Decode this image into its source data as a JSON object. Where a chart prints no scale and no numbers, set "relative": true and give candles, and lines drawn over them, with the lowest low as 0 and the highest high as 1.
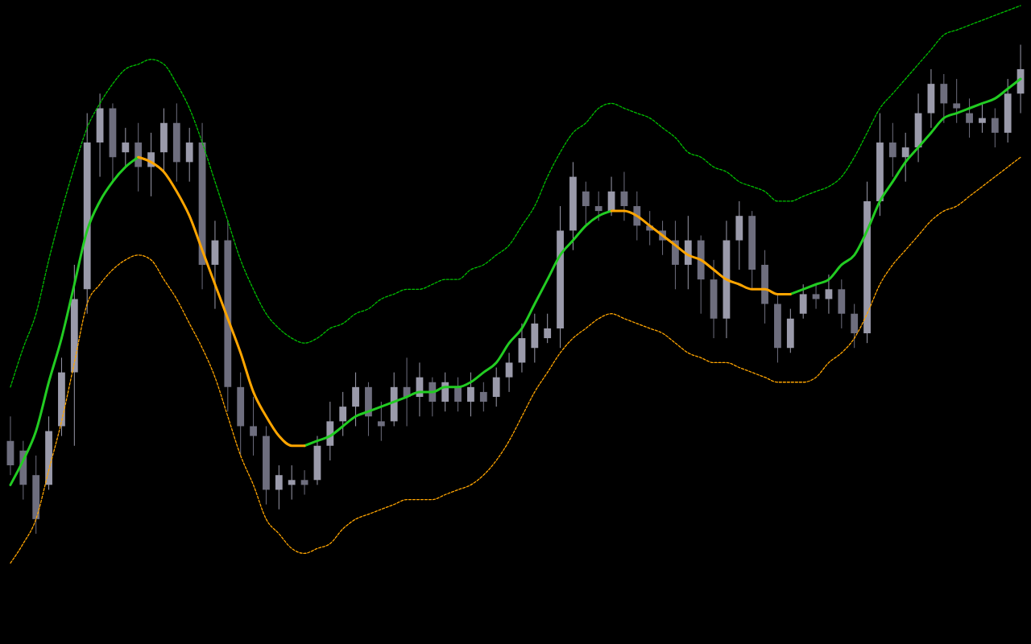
{
  "chart_data": {
    "type": "candlestick",
    "relative": true,
    "tick_labels": false,
    "colors": [
      "#6e6e7e",
      "#6e6e7e",
      "#6e6e7e",
      "#9a9aaa",
      "#9a9aaa",
      "#9a9aaa",
      "#9a9aaa",
      "#9a9aaa",
      "#6e6e7e",
      "#9a9aaa",
      "#6e6e7e",
      "#9a9aaa",
      "#9a9aaa",
      "#6e6e7e",
      "#9a9aaa",
      "#6e6e7e",
      "#9a9aaa",
      "#6e6e7e",
      "#6e6e7e",
      "#6e6e7e",
      "#6e6e7e",
      "#9a9aaa",
      "#9a9aaa",
      "#6e6e7e",
      "#9a9aaa",
      "#9a9aaa",
      "#9a9aaa",
      "#9a9aaa",
      "#6e6e7e",
      "#6e6e7e",
      "#9a9aaa",
      "#6e6e7e",
      "#9a9aaa",
      "#6e6e7e",
      "#9a9aaa",
      "#6e6e7e",
      "#9a9aaa",
      "#6e6e7e",
      "#9a9aaa",
      "#9a9aaa",
      "#9a9aaa",
      "#9a9aaa",
      "#9a9aaa",
      "#9a9aaa",
      "#9a9aaa",
      "#6e6e7e",
      "#6e6e7e",
      "#9a9aaa",
      "#6e6e7e",
      "#6e6e7e",
      "#6e6e7e",
      "#6e6e7e",
      "#6e6e7e",
      "#9a9aaa",
      "#6e6e7e",
      "#6e6e7e",
      "#9a9aaa",
      "#9a9aaa",
      "#6e6e7e",
      "#6e6e7e",
      "#6e6e7e",
      "#9a9aaa",
      "#9a9aaa",
      "#6e6e7e",
      "#9a9aaa",
      "#6e6e7e",
      "#6e6e7e",
      "#9a9aaa",
      "#9a9aaa",
      "#6e6e7e",
      "#9a9aaa",
      "#9a9aaa",
      "#9a9aaa",
      "#6e6e7e",
      "#6e6e7e",
      "#6e6e7e",
      "#9a9aaa",
      "#6e6e7e",
      "#9a9aaa",
      "#9a9aaa"
    ],
    "categories": [
      null,
      null,
      null,
      null,
      null,
      null,
      null,
      null,
      null,
      null,
      null,
      null,
      null,
      null,
      null,
      null,
      null,
      null,
      null,
      null,
      null,
      null,
      null,
      null,
      null,
      null,
      null,
      null,
      null,
      null,
      null,
      null,
      null,
      null,
      null,
      null,
      null,
      null,
      null,
      null,
      null,
      null,
      null,
      null,
      null,
      null,
      null,
      null,
      null,
      null,
      null,
      null,
      null,
      null,
      null,
      null,
      null,
      null,
      null,
      null,
      null,
      null,
      null,
      null,
      null,
      null,
      null,
      null,
      null,
      null,
      null,
      null,
      null,
      null,
      null,
      null,
      null,
      null,
      null,
      null
    ],
    "ohlc": [
      [
        0.19,
        0.24,
        0.12,
        0.14
      ],
      [
        0.17,
        0.19,
        0.07,
        0.1
      ],
      [
        0.12,
        0.16,
        0,
        0.03
      ],
      [
        0.1,
        0.24,
        0.09,
        0.21
      ],
      [
        0.22,
        0.36,
        0.2,
        0.33
      ],
      [
        0.33,
        0.55,
        0.18,
        0.48
      ],
      [
        0.5,
        0.86,
        0.45,
        0.8
      ],
      [
        0.8,
        0.9,
        0.73,
        0.87
      ],
      [
        0.87,
        0.88,
        0.72,
        0.77
      ],
      [
        0.78,
        0.83,
        0.75,
        0.8
      ],
      [
        0.8,
        0.84,
        0.7,
        0.75
      ],
      [
        0.75,
        0.82,
        0.69,
        0.78
      ],
      [
        0.78,
        0.87,
        0.74,
        0.84
      ],
      [
        0.84,
        0.88,
        0.72,
        0.76
      ],
      [
        0.76,
        0.83,
        0.72,
        0.8
      ],
      [
        0.8,
        0.84,
        0.5,
        0.55
      ],
      [
        0.55,
        0.64,
        0.46,
        0.6
      ],
      [
        0.6,
        0.64,
        0.25,
        0.3
      ],
      [
        0.3,
        0.33,
        0.16,
        0.22
      ],
      [
        0.22,
        0.28,
        0.16,
        0.2
      ],
      [
        0.2,
        0.22,
        0.06,
        0.09
      ],
      [
        0.09,
        0.14,
        0.05,
        0.12
      ],
      [
        0.1,
        0.14,
        0.07,
        0.11
      ],
      [
        0.11,
        0.13,
        0.08,
        0.1
      ],
      [
        0.11,
        0.2,
        0.1,
        0.18
      ],
      [
        0.18,
        0.27,
        0.15,
        0.23
      ],
      [
        0.23,
        0.29,
        0.2,
        0.26
      ],
      [
        0.26,
        0.33,
        0.22,
        0.3
      ],
      [
        0.3,
        0.31,
        0.2,
        0.24
      ],
      [
        0.23,
        0.27,
        0.19,
        0.22
      ],
      [
        0.23,
        0.33,
        0.22,
        0.3
      ],
      [
        0.3,
        0.36,
        0.22,
        0.28
      ],
      [
        0.28,
        0.35,
        0.24,
        0.32
      ],
      [
        0.31,
        0.32,
        0.24,
        0.27
      ],
      [
        0.27,
        0.33,
        0.25,
        0.31
      ],
      [
        0.3,
        0.32,
        0.25,
        0.27
      ],
      [
        0.27,
        0.33,
        0.24,
        0.3
      ],
      [
        0.29,
        0.31,
        0.25,
        0.27
      ],
      [
        0.28,
        0.34,
        0.26,
        0.32
      ],
      [
        0.32,
        0.37,
        0.29,
        0.35
      ],
      [
        0.35,
        0.43,
        0.33,
        0.4
      ],
      [
        0.38,
        0.45,
        0.35,
        0.43
      ],
      [
        0.4,
        0.45,
        0.39,
        0.42
      ],
      [
        0.42,
        0.67,
        0.38,
        0.62
      ],
      [
        0.62,
        0.76,
        0.58,
        0.73
      ],
      [
        0.7,
        0.72,
        0.63,
        0.67
      ],
      [
        0.67,
        0.7,
        0.64,
        0.66
      ],
      [
        0.66,
        0.73,
        0.65,
        0.7
      ],
      [
        0.7,
        0.74,
        0.64,
        0.67
      ],
      [
        0.67,
        0.7,
        0.6,
        0.63
      ],
      [
        0.63,
        0.66,
        0.59,
        0.62
      ],
      [
        0.62,
        0.64,
        0.57,
        0.6
      ],
      [
        0.6,
        0.64,
        0.5,
        0.55
      ],
      [
        0.55,
        0.65,
        0.5,
        0.6
      ],
      [
        0.6,
        0.61,
        0.45,
        0.52
      ],
      [
        0.52,
        0.56,
        0.4,
        0.44
      ],
      [
        0.44,
        0.64,
        0.4,
        0.6
      ],
      [
        0.6,
        0.68,
        0.54,
        0.65
      ],
      [
        0.65,
        0.66,
        0.5,
        0.54
      ],
      [
        0.55,
        0.58,
        0.43,
        0.47
      ],
      [
        0.47,
        0.49,
        0.35,
        0.38
      ],
      [
        0.38,
        0.46,
        0.37,
        0.44
      ],
      [
        0.45,
        0.51,
        0.44,
        0.49
      ],
      [
        0.49,
        0.51,
        0.46,
        0.48
      ],
      [
        0.48,
        0.53,
        0.45,
        0.5
      ],
      [
        0.5,
        0.52,
        0.42,
        0.45
      ],
      [
        0.45,
        0.47,
        0.38,
        0.41
      ],
      [
        0.41,
        0.72,
        0.39,
        0.68
      ],
      [
        0.68,
        0.86,
        0.65,
        0.8
      ],
      [
        0.8,
        0.84,
        0.73,
        0.77
      ],
      [
        0.77,
        0.82,
        0.72,
        0.79
      ],
      [
        0.79,
        0.9,
        0.76,
        0.86
      ],
      [
        0.86,
        0.95,
        0.83,
        0.92
      ],
      [
        0.92,
        0.94,
        0.84,
        0.88
      ],
      [
        0.88,
        0.93,
        0.84,
        0.87
      ],
      [
        0.86,
        0.89,
        0.81,
        0.84
      ],
      [
        0.84,
        0.88,
        0.82,
        0.85
      ],
      [
        0.85,
        0.87,
        0.79,
        0.82
      ],
      [
        0.82,
        0.93,
        0.8,
        0.9
      ],
      [
        0.9,
        1,
        0.86,
        0.95
      ]
    ],
    "series": [
      {
        "type": "line",
        "color": "#ffa500",
        "line_style": "dashed",
        "values": [
          -0.06,
          -0.02,
          0.03,
          0.13,
          0.23,
          0.35,
          0.47,
          0.51,
          0.54,
          0.56,
          0.57,
          0.56,
          0.52,
          0.48,
          0.43,
          0.38,
          0.32,
          0.24,
          0.16,
          0.1,
          0.03,
          0,
          -0.03,
          -0.04,
          -0.03,
          -0.02,
          0.01,
          0.03,
          0.04,
          0.05,
          0.06,
          0.07,
          0.07,
          0.07,
          0.08,
          0.09,
          0.1,
          0.12,
          0.15,
          0.19,
          0.24,
          0.29,
          0.33,
          0.37,
          0.4,
          0.42,
          0.44,
          0.45,
          0.44,
          0.43,
          0.42,
          0.41,
          0.39,
          0.37,
          0.36,
          0.35,
          0.35,
          0.34,
          0.33,
          0.32,
          0.31,
          0.31,
          0.31,
          0.32,
          0.35,
          0.37,
          0.4,
          0.45,
          0.51,
          0.55,
          0.58,
          0.61,
          0.64,
          0.66,
          0.67,
          0.69,
          0.71,
          0.73,
          0.75,
          0.77
        ]
      },
      {
        "type": "line",
        "color": "#00c000",
        "line_style": "dashed",
        "values": [
          0.3,
          0.38,
          0.45,
          0.56,
          0.66,
          0.75,
          0.83,
          0.88,
          0.92,
          0.95,
          0.96,
          0.97,
          0.96,
          0.92,
          0.87,
          0.8,
          0.72,
          0.64,
          0.56,
          0.5,
          0.45,
          0.42,
          0.4,
          0.39,
          0.4,
          0.42,
          0.43,
          0.45,
          0.46,
          0.48,
          0.49,
          0.5,
          0.5,
          0.51,
          0.52,
          0.52,
          0.54,
          0.55,
          0.57,
          0.59,
          0.63,
          0.67,
          0.73,
          0.78,
          0.82,
          0.84,
          0.87,
          0.88,
          0.87,
          0.86,
          0.85,
          0.83,
          0.81,
          0.78,
          0.77,
          0.75,
          0.74,
          0.72,
          0.71,
          0.7,
          0.68,
          0.68,
          0.69,
          0.7,
          0.71,
          0.73,
          0.77,
          0.82,
          0.87,
          0.9,
          0.93,
          0.96,
          0.99,
          1.02,
          1.03,
          1.04,
          1.05,
          1.06,
          1.07,
          1.08
        ]
      },
      {
        "type": "line",
        "color": "#22cc22",
        "line_style": "solid",
        "values": [
          0.1,
          0.15,
          0.21,
          0.31,
          0.4,
          0.51,
          0.62,
          0.68,
          0.72,
          0.75,
          0.77,
          null,
          null,
          null,
          null,
          null,
          null,
          null,
          null,
          null,
          null,
          null,
          null,
          0.18,
          0.19,
          0.2,
          0.22,
          0.24,
          0.25,
          0.26,
          0.27,
          0.28,
          0.29,
          0.29,
          0.3,
          0.3,
          0.31,
          0.33,
          0.35,
          0.39,
          0.42,
          0.47,
          0.52,
          0.57,
          0.6,
          0.63,
          0.65,
          0.66,
          null,
          null,
          null,
          null,
          null,
          null,
          null,
          null,
          null,
          null,
          null,
          null,
          null,
          0.49,
          0.5,
          0.51,
          0.52,
          0.55,
          0.57,
          0.62,
          0.68,
          0.72,
          0.76,
          0.79,
          0.82,
          0.85,
          0.86,
          0.87,
          0.88,
          0.89,
          0.91,
          0.93
        ]
      },
      {
        "type": "line",
        "color": "#ffa500",
        "line_style": "solid",
        "values": [
          null,
          null,
          null,
          null,
          null,
          null,
          null,
          null,
          null,
          null,
          0.77,
          0.76,
          0.74,
          0.7,
          0.65,
          0.58,
          0.51,
          0.44,
          0.37,
          0.29,
          0.24,
          0.2,
          0.18,
          0.18,
          null,
          null,
          null,
          null,
          null,
          null,
          null,
          null,
          null,
          null,
          null,
          null,
          null,
          null,
          null,
          null,
          null,
          null,
          null,
          null,
          null,
          null,
          null,
          0.66,
          0.66,
          0.65,
          0.63,
          0.61,
          0.59,
          0.57,
          0.56,
          0.54,
          0.52,
          0.51,
          0.5,
          0.5,
          0.49,
          0.49,
          null,
          null,
          null,
          null,
          null,
          null,
          null,
          null,
          null,
          null,
          null,
          null,
          null,
          null,
          null,
          null,
          null,
          null
        ]
      }
    ]
  }
}
